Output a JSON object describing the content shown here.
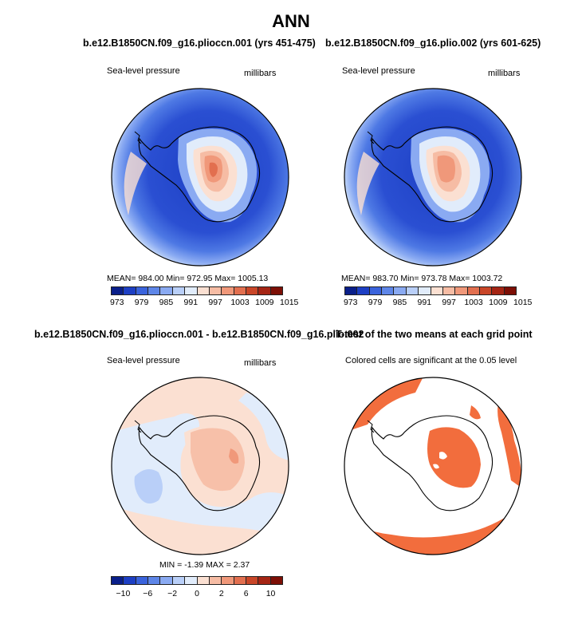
{
  "figure": {
    "title": "ANN"
  },
  "panels": [
    {
      "id": "p1",
      "title": "b.e12.B1850CN.f09_g16.plioccn.001 (yrs 451-475)",
      "left_label": "Sea-level pressure",
      "right_label": "millibars",
      "stats": "MEAN= 984.00   Min= 972.95   Max= 1005.13"
    },
    {
      "id": "p2",
      "title": "b.e12.B1850CN.f09_g16.plio.002 (yrs 601-625)",
      "left_label": "Sea-level pressure",
      "right_label": "millibars",
      "stats": "MEAN= 983.70   Min= 973.78   Max= 1003.72"
    },
    {
      "id": "p3",
      "title": "b.e12.B1850CN.f09_g16.plioccn.001 - b.e12.B1850CN.f09_g16.plio.002",
      "left_label": "Sea-level pressure",
      "right_label": "millibars",
      "stats": "MIN =   -1.39  MAX =    2.37"
    },
    {
      "id": "p4",
      "title": "T-test of the two means at each grid point",
      "left_label": "Colored cells are significant at the 0.05 level"
    }
  ],
  "colorbars": {
    "abs": {
      "colors": [
        "#0a1f8a",
        "#1d3fc4",
        "#3a63dc",
        "#5e86e8",
        "#8aaaf2",
        "#b9cff8",
        "#e1ecfb",
        "#fbe0d2",
        "#f6bca4",
        "#f0987a",
        "#e26f4f",
        "#c94628",
        "#a52514",
        "#7d0f06"
      ],
      "ticks": [
        "973",
        "979",
        "985",
        "991",
        "997",
        "1003",
        "1009",
        "1015"
      ]
    },
    "diff": {
      "colors": [
        "#0a1f8a",
        "#1d3fc4",
        "#3a63dc",
        "#5e86e8",
        "#8aaaf2",
        "#b9cff8",
        "#e1ecfb",
        "#fbe0d2",
        "#f6bca4",
        "#f0987a",
        "#e26f4f",
        "#c94628",
        "#a52514",
        "#7d0f06"
      ],
      "ticks": [
        "−10",
        "−6",
        "−2",
        "0",
        "2",
        "6",
        "10"
      ]
    }
  },
  "chart_data": [
    {
      "type": "heatmap",
      "title": "b.e12.B1850CN.f09_g16.plioccn.001 (yrs 451-475)",
      "variable": "Sea-level pressure",
      "units": "millibars",
      "projection": "south-polar-stereographic",
      "mean": 984.0,
      "min": 972.95,
      "max": 1005.13,
      "contour_levels": [
        973,
        976,
        979,
        982,
        985,
        988,
        991,
        994,
        997,
        1000,
        1003,
        1006,
        1009,
        1012,
        1015
      ]
    },
    {
      "type": "heatmap",
      "title": "b.e12.B1850CN.f09_g16.plio.002 (yrs 601-625)",
      "variable": "Sea-level pressure",
      "units": "millibars",
      "projection": "south-polar-stereographic",
      "mean": 983.7,
      "min": 973.78,
      "max": 1003.72,
      "contour_levels": [
        973,
        976,
        979,
        982,
        985,
        988,
        991,
        994,
        997,
        1000,
        1003,
        1006,
        1009,
        1012,
        1015
      ]
    },
    {
      "type": "heatmap",
      "title": "b.e12.B1850CN.f09_g16.plioccn.001 - b.e12.B1850CN.f09_g16.plio.002",
      "variable": "Sea-level pressure",
      "units": "millibars",
      "projection": "south-polar-stereographic",
      "min": -1.39,
      "max": 2.37,
      "contour_levels": [
        -10,
        -8,
        -6,
        -4,
        -2,
        -1,
        0,
        1,
        2,
        4,
        6,
        8,
        10
      ]
    },
    {
      "type": "heatmap",
      "title": "T-test of the two means at each grid point",
      "annotation": "Colored cells are significant at the 0.05 level",
      "significance_level": 0.05,
      "projection": "south-polar-stereographic"
    }
  ]
}
